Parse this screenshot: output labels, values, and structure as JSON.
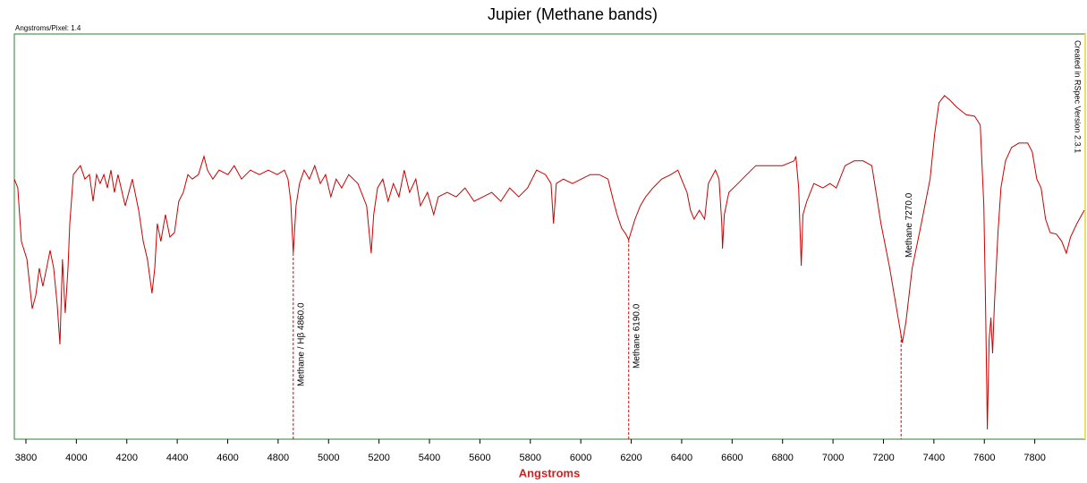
{
  "chart_data": {
    "type": "line",
    "title": "Jupier (Methane bands)",
    "note": "Angstroms/Pixel: 1.4",
    "credit": "Created in RSpec Version 2.3.1",
    "x_label": "Angstroms",
    "color": "#cc0000",
    "xlim": [
      3754,
      8000
    ],
    "xticks": [
      3800,
      4000,
      4200,
      4400,
      4600,
      4800,
      5000,
      5200,
      5400,
      5600,
      5800,
      6000,
      6200,
      6400,
      6600,
      6800,
      7000,
      7200,
      7400,
      7600,
      7800
    ],
    "ylim": [
      0,
      1
    ],
    "x": [
      3754,
      3768,
      3782,
      3804,
      3825,
      3839,
      3853,
      3867,
      3882,
      3896,
      3910,
      3924,
      3935,
      3945,
      3956,
      3967,
      3974,
      3988,
      4002,
      4016,
      4034,
      4052,
      4066,
      4080,
      4094,
      4109,
      4123,
      4137,
      4151,
      4165,
      4194,
      4222,
      4247,
      4265,
      4282,
      4300,
      4311,
      4321,
      4335,
      4353,
      4371,
      4389,
      4406,
      4424,
      4442,
      4460,
      4484,
      4506,
      4520,
      4541,
      4566,
      4601,
      4626,
      4655,
      4690,
      4726,
      4761,
      4796,
      4825,
      4839,
      4850,
      4860,
      4871,
      4885,
      4903,
      4924,
      4945,
      4967,
      4988,
      5009,
      5030,
      5052,
      5080,
      5116,
      5151,
      5169,
      5179,
      5194,
      5215,
      5236,
      5257,
      5279,
      5300,
      5321,
      5346,
      5364,
      5392,
      5417,
      5435,
      5470,
      5506,
      5541,
      5577,
      5612,
      5647,
      5683,
      5718,
      5754,
      5789,
      5825,
      5860,
      5882,
      5892,
      5903,
      5931,
      5967,
      6002,
      6037,
      6073,
      6108,
      6130,
      6144,
      6162,
      6179,
      6190,
      6215,
      6236,
      6257,
      6286,
      6321,
      6357,
      6385,
      6399,
      6421,
      6435,
      6449,
      6470,
      6491,
      6506,
      6534,
      6548,
      6559,
      6562,
      6569,
      6587,
      6623,
      6658,
      6694,
      6747,
      6800,
      6846,
      6853,
      6864,
      6874,
      6881,
      6896,
      6924,
      6960,
      6988,
      7013,
      7048,
      7084,
      7119,
      7154,
      7190,
      7225,
      7243,
      7261,
      7275,
      7289,
      7314,
      7350,
      7385,
      7403,
      7420,
      7442,
      7463,
      7491,
      7527,
      7562,
      7584,
      7598,
      7605,
      7612,
      7619,
      7626,
      7633,
      7640,
      7654,
      7666,
      7684,
      7708,
      7737,
      7772,
      7790,
      7808,
      7825,
      7843,
      7861,
      7886,
      7907,
      7925,
      7942,
      7967,
      7996
    ],
    "values": [
      0.642,
      0.62,
      0.488,
      0.444,
      0.322,
      0.355,
      0.422,
      0.377,
      0.422,
      0.466,
      0.422,
      0.333,
      0.234,
      0.444,
      0.311,
      0.422,
      0.532,
      0.653,
      0.664,
      0.675,
      0.642,
      0.653,
      0.587,
      0.653,
      0.631,
      0.653,
      0.62,
      0.664,
      0.609,
      0.653,
      0.576,
      0.642,
      0.565,
      0.488,
      0.444,
      0.36,
      0.422,
      0.532,
      0.488,
      0.554,
      0.499,
      0.51,
      0.587,
      0.609,
      0.653,
      0.642,
      0.653,
      0.698,
      0.664,
      0.642,
      0.664,
      0.653,
      0.675,
      0.642,
      0.664,
      0.653,
      0.664,
      0.653,
      0.664,
      0.642,
      0.587,
      0.459,
      0.576,
      0.631,
      0.664,
      0.642,
      0.675,
      0.631,
      0.653,
      0.598,
      0.642,
      0.62,
      0.653,
      0.631,
      0.576,
      0.459,
      0.554,
      0.62,
      0.642,
      0.587,
      0.631,
      0.598,
      0.664,
      0.609,
      0.642,
      0.576,
      0.609,
      0.554,
      0.598,
      0.609,
      0.598,
      0.62,
      0.587,
      0.598,
      0.609,
      0.587,
      0.62,
      0.598,
      0.62,
      0.664,
      0.653,
      0.631,
      0.532,
      0.631,
      0.642,
      0.631,
      0.642,
      0.653,
      0.653,
      0.642,
      0.587,
      0.554,
      0.521,
      0.506,
      0.492,
      0.543,
      0.576,
      0.598,
      0.62,
      0.642,
      0.653,
      0.664,
      0.642,
      0.609,
      0.565,
      0.543,
      0.565,
      0.543,
      0.631,
      0.664,
      0.642,
      0.532,
      0.47,
      0.554,
      0.609,
      0.631,
      0.653,
      0.675,
      0.675,
      0.675,
      0.687,
      0.698,
      0.62,
      0.428,
      0.554,
      0.587,
      0.631,
      0.62,
      0.631,
      0.62,
      0.675,
      0.687,
      0.687,
      0.675,
      0.532,
      0.422,
      0.355,
      0.289,
      0.238,
      0.289,
      0.422,
      0.532,
      0.642,
      0.753,
      0.83,
      0.848,
      0.837,
      0.819,
      0.801,
      0.797,
      0.775,
      0.576,
      0.333,
      0.024,
      0.245,
      0.3,
      0.212,
      0.333,
      0.51,
      0.62,
      0.687,
      0.72,
      0.731,
      0.731,
      0.709,
      0.642,
      0.62,
      0.543,
      0.51,
      0.506,
      0.488,
      0.459,
      0.499,
      0.532,
      0.565
    ],
    "markers": [
      {
        "x": 4860,
        "label": "Methane / Hβ 4860.0"
      },
      {
        "x": 6190,
        "label": "Methane 6190.0"
      },
      {
        "x": 7270,
        "label": "Methane 7270.0"
      }
    ]
  }
}
